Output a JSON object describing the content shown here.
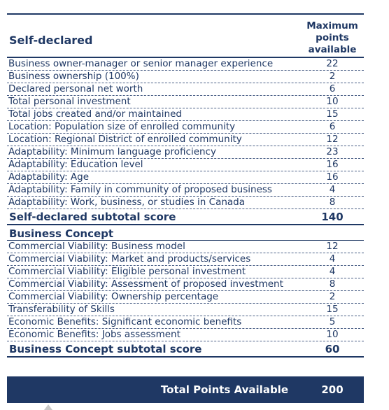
{
  "header": {
    "section_title": "Self-declared",
    "points_header_line1": "Maximum",
    "points_header_line2": "points",
    "points_header_line3": "available"
  },
  "self_declared": {
    "rows": [
      {
        "label": "Business owner-manager or senior manager experience",
        "points": "22"
      },
      {
        "label": "Business ownership (100%)",
        "points": "2"
      },
      {
        "label": "Declared personal net worth",
        "points": "6"
      },
      {
        "label": "Total personal investment",
        "points": "10"
      },
      {
        "label": "Total jobs created and/or maintained",
        "points": "15"
      },
      {
        "label": "Location: Population size of enrolled community",
        "points": "6"
      },
      {
        "label": "Location: Regional District of enrolled community",
        "points": "12"
      },
      {
        "label": "Adaptability: Minimum language proficiency",
        "points": "23"
      },
      {
        "label": "Adaptability: Education level",
        "points": "16"
      },
      {
        "label": "Adaptability: Age",
        "points": "16"
      },
      {
        "label": "Adaptability: Family in community of proposed business",
        "points": "4"
      },
      {
        "label": "Adaptability: Work, business, or studies in Canada",
        "points": "8"
      }
    ],
    "subtotal_label": "Self-declared subtotal score",
    "subtotal_value": "140"
  },
  "business_concept": {
    "title": "Business Concept",
    "rows": [
      {
        "label": "Commercial Viability: Business model",
        "points": "12"
      },
      {
        "label": "Commercial Viability: Market and products/services",
        "points": "4"
      },
      {
        "label": "Commercial Viability: Eligible personal investment",
        "points": "4"
      },
      {
        "label": "Commercial Viability: Assessment of proposed investment",
        "points": "8"
      },
      {
        "label": "Commercial Viability: Ownership percentage",
        "points": "2"
      },
      {
        "label": "Transferability of Skills",
        "points": "15"
      },
      {
        "label": "Economic Benefits: Significant economic benefits",
        "points": "5"
      },
      {
        "label": "Economic Benefits: Jobs assessment",
        "points": "10"
      }
    ],
    "subtotal_label": "Business Concept subtotal score",
    "subtotal_value": "60"
  },
  "total": {
    "label": "Total Points Available",
    "value": "200"
  }
}
